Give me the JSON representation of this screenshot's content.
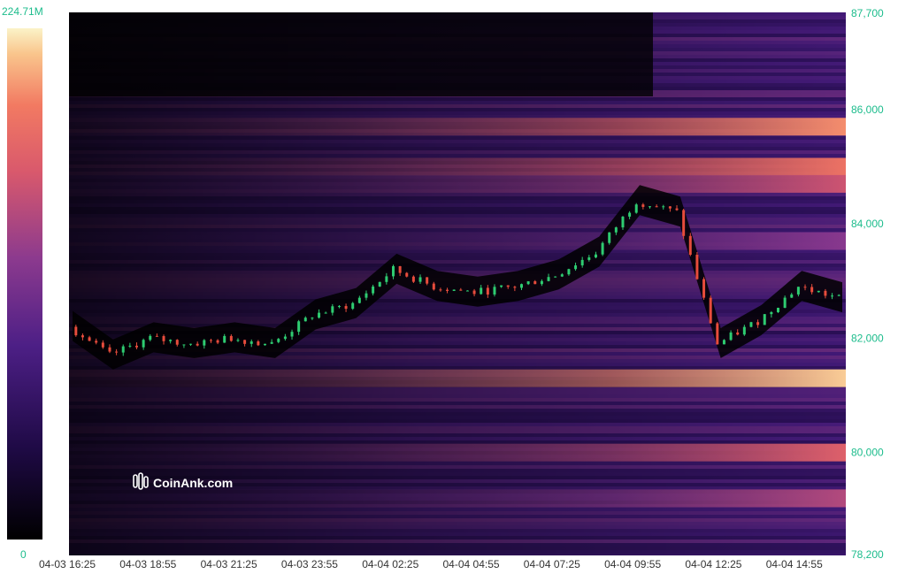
{
  "chart_data": {
    "type": "heatmap",
    "title": "",
    "watermark": "CoinAnk.com",
    "color_scale": {
      "min_label": "0",
      "max_label": "224.71M",
      "colors": [
        "#000000",
        "#1f0a46",
        "#4d1f86",
        "#8c3a8e",
        "#d9596c",
        "#f27a62",
        "#f9c58c",
        "#fbf3c8"
      ]
    },
    "x_ticks": [
      "04-03 16:25",
      "04-03 18:55",
      "04-03 21:25",
      "04-03 23:55",
      "04-04 02:25",
      "04-04 04:55",
      "04-04 07:25",
      "04-04 09:55",
      "04-04 12:25",
      "04-04 14:55"
    ],
    "y_ticks": [
      "87,700",
      "86,000",
      "84,000",
      "82,000",
      "80,000",
      "78,200"
    ],
    "y_tick_values": [
      87700,
      86000,
      84000,
      82000,
      80000,
      78200
    ],
    "ylim": [
      78200,
      87700
    ],
    "price_series": {
      "name": "",
      "x": [
        "04-03 16:25",
        "04-03 17:40",
        "04-03 18:55",
        "04-03 20:10",
        "04-03 21:25",
        "04-03 22:40",
        "04-03 23:55",
        "04-04 01:10",
        "04-04 02:25",
        "04-04 03:40",
        "04-04 04:55",
        "04-04 06:10",
        "04-04 07:25",
        "04-04 08:40",
        "04-04 09:55",
        "04-04 11:10",
        "04-04 12:25",
        "04-04 13:40",
        "04-04 14:55",
        "04-04 15:30"
      ],
      "close": [
        82200,
        81700,
        82000,
        81900,
        82000,
        81900,
        82400,
        82600,
        83200,
        82900,
        82800,
        82900,
        83100,
        83500,
        84400,
        84200,
        81900,
        82300,
        82900,
        82700
      ]
    },
    "liquidity_bands": [
      {
        "price": 85700,
        "intensity": 0.75
      },
      {
        "price": 85000,
        "intensity": 0.68
      },
      {
        "price": 84700,
        "intensity": 0.55
      },
      {
        "price": 83700,
        "intensity": 0.42
      },
      {
        "price": 81300,
        "intensity": 0.88
      },
      {
        "price": 80000,
        "intensity": 0.6
      },
      {
        "price": 79200,
        "intensity": 0.5
      }
    ]
  }
}
